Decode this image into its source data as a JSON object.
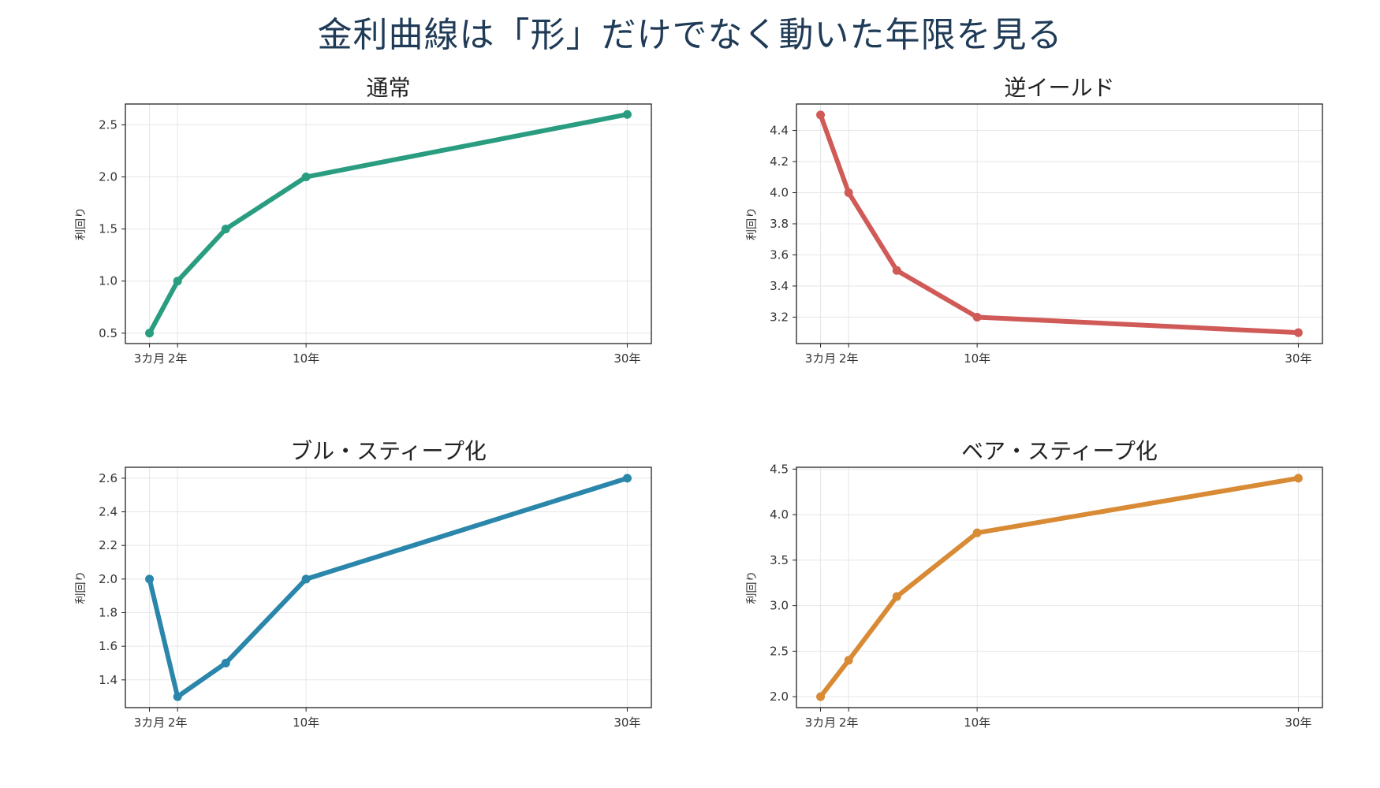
{
  "title": "金利曲線は「形」だけでなく動いた年限を見る",
  "chart_data": [
    {
      "type": "line",
      "title": "通常",
      "ylabel": "利回り",
      "xlabel": "",
      "x": [
        0.25,
        2,
        5,
        10,
        30
      ],
      "xticks": [
        0.25,
        2,
        10,
        30
      ],
      "xtick_labels": [
        "3カ月",
        "2年",
        "10年",
        "30年"
      ],
      "values": [
        0.5,
        1.0,
        1.5,
        2.0,
        2.6
      ],
      "ylim": [
        0.4,
        2.7
      ],
      "yticks": [
        0.5,
        1.0,
        1.5,
        2.0,
        2.5
      ],
      "grid": true,
      "color": "#2a9d80"
    },
    {
      "type": "line",
      "title": "逆イールド",
      "ylabel": "利回り",
      "xlabel": "",
      "x": [
        0.25,
        2,
        5,
        10,
        30
      ],
      "xticks": [
        0.25,
        2,
        10,
        30
      ],
      "xtick_labels": [
        "3カ月",
        "2年",
        "10年",
        "30年"
      ],
      "values": [
        4.5,
        4.0,
        3.5,
        3.2,
        3.1
      ],
      "ylim": [
        3.03,
        4.57
      ],
      "yticks": [
        3.2,
        3.4,
        3.6,
        3.8,
        4.0,
        4.2,
        4.4
      ],
      "grid": true,
      "color": "#d05a57"
    },
    {
      "type": "line",
      "title": "ブル・スティープ化",
      "ylabel": "利回り",
      "xlabel": "",
      "x": [
        0.25,
        2,
        5,
        10,
        30
      ],
      "xticks": [
        0.25,
        2,
        10,
        30
      ],
      "xtick_labels": [
        "3カ月",
        "2年",
        "10年",
        "30年"
      ],
      "values": [
        2.0,
        1.3,
        1.5,
        2.0,
        2.6
      ],
      "ylim": [
        1.235,
        2.665
      ],
      "yticks": [
        1.4,
        1.6,
        1.8,
        2.0,
        2.2,
        2.4,
        2.6
      ],
      "grid": true,
      "color": "#2a86aa"
    },
    {
      "type": "line",
      "title": "ベア・スティープ化",
      "ylabel": "利回り",
      "xlabel": "",
      "x": [
        0.25,
        2,
        5,
        10,
        30
      ],
      "xticks": [
        0.25,
        2,
        10,
        30
      ],
      "xtick_labels": [
        "3カ月",
        "2年",
        "10年",
        "30年"
      ],
      "values": [
        2.0,
        2.4,
        3.1,
        3.8,
        4.4
      ],
      "ylim": [
        1.88,
        4.52
      ],
      "yticks": [
        2.0,
        2.5,
        3.0,
        3.5,
        4.0,
        4.5
      ],
      "grid": true,
      "color": "#d88a35"
    }
  ]
}
